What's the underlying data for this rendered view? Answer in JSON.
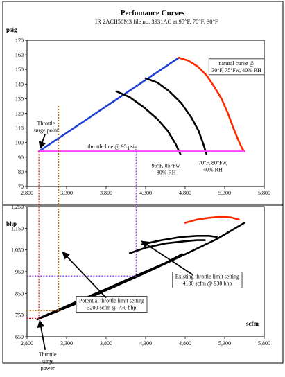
{
  "chart_data": [
    {
      "type": "line",
      "title": "Perfomance Curves",
      "subtitle": "IR 2ACII50M3 file no. 3931AC  at 95°F, 70°F, 30°F",
      "ylabel": "psig",
      "xlabel": "",
      "xlim": [
        2800,
        5800
      ],
      "ylim": [
        70,
        170
      ],
      "x_ticks": [
        "2,800",
        "3,300",
        "3,800",
        "4,300",
        "4,800",
        "5,300",
        "5,800"
      ],
      "y_ticks": [
        "70",
        "80",
        "90",
        "100",
        "110",
        "120",
        "130",
        "140",
        "150",
        "160",
        "170"
      ],
      "grid": false,
      "series": [
        {
          "color": "#1f3fd6",
          "x": [
            2950,
            4720
          ],
          "y": [
            94,
            158
          ]
        },
        {
          "color": "#ff2a00",
          "x": [
            4720,
            4840,
            4960,
            5070,
            5170,
            5260,
            5340,
            5410,
            5470,
            5520,
            5550
          ],
          "y": [
            158,
            156,
            152,
            146,
            138,
            130,
            120,
            110,
            102,
            96,
            94
          ]
        },
        {
          "color": "#000000",
          "x": [
            4300,
            4450,
            4600,
            4750,
            4880,
            4970,
            5030,
            5070
          ],
          "y": [
            144,
            141,
            135,
            127,
            117,
            108,
            99,
            92
          ]
        },
        {
          "color": "#000000",
          "x": [
            3930,
            4100,
            4280,
            4450,
            4580,
            4680,
            4740
          ],
          "y": [
            135,
            131,
            124,
            116,
            108,
            99,
            92
          ]
        },
        {
          "color": "#ff44ff",
          "x": [
            2950,
            5550
          ],
          "y": [
            94,
            94
          ]
        }
      ],
      "annotations": [
        {
          "text": [
            "natural curve @",
            "30°F, 75°Fw, 40% RH"
          ],
          "x": 5450,
          "y": 153
        },
        {
          "text": [
            "throttle line @ 95 psig"
          ],
          "x": 3880,
          "y": 96
        },
        {
          "text": [
            "Throttle",
            "surge point"
          ],
          "x": 3040,
          "y": 112
        },
        {
          "text": [
            "95°F, 85°Fw,",
            "80% RH"
          ],
          "x": 4560,
          "y": 83
        },
        {
          "text": [
            "70°F, 80°Fw,",
            "40% RH"
          ],
          "x": 5150,
          "y": 85
        }
      ]
    },
    {
      "type": "line",
      "title": "",
      "ylabel": "bhp",
      "xlabel": "scfm",
      "xlim": [
        2800,
        5800
      ],
      "ylim": [
        650,
        1250
      ],
      "x_ticks": [
        "2,800",
        "3,300",
        "3,800",
        "4,300",
        "4,800",
        "5,300",
        "5,800"
      ],
      "y_ticks": [
        "650",
        "750",
        "850",
        "950",
        "1,050",
        "1,150",
        "1,250"
      ],
      "grid": false,
      "series": [
        {
          "color": "#ff2a00",
          "x": [
            4800,
            4950,
            5100,
            5250,
            5380,
            5480
          ],
          "y": [
            1175,
            1190,
            1198,
            1203,
            1200,
            1190
          ]
        },
        {
          "color": "#000000",
          "x": [
            2930,
            3400,
            3900,
            4300,
            4800,
            5200,
            5550
          ],
          "y": [
            730,
            800,
            880,
            945,
            1030,
            1100,
            1175
          ]
        },
        {
          "color": "#000000",
          "x": [
            2950,
            3350,
            3800,
            4200,
            4550,
            4760
          ],
          "y": [
            735,
            800,
            870,
            935,
            990,
            1030
          ]
        },
        {
          "color": "#000000",
          "x": [
            4100,
            4300,
            4550,
            4800,
            4950,
            5050
          ],
          "y": [
            1035,
            1060,
            1080,
            1090,
            1095,
            1095
          ]
        },
        {
          "color": "#000000",
          "x": [
            4250,
            4500,
            4750,
            4950,
            5100,
            5200
          ],
          "y": [
            1075,
            1095,
            1110,
            1115,
            1115,
            1110
          ]
        }
      ],
      "annotations": [
        {
          "text": [
            "Existing throttle limit setting",
            "4180 scfm @ 930 bhp"
          ],
          "x": 5080,
          "y": 920
        },
        {
          "text": [
            "Potential throttle limit setting",
            "3200 scfm @ 770 bhp"
          ],
          "x": 3870,
          "y": 808
        },
        {
          "text": [
            "Throttle",
            "surge",
            "power"
          ],
          "x": 3060,
          "y": 560
        }
      ]
    }
  ]
}
